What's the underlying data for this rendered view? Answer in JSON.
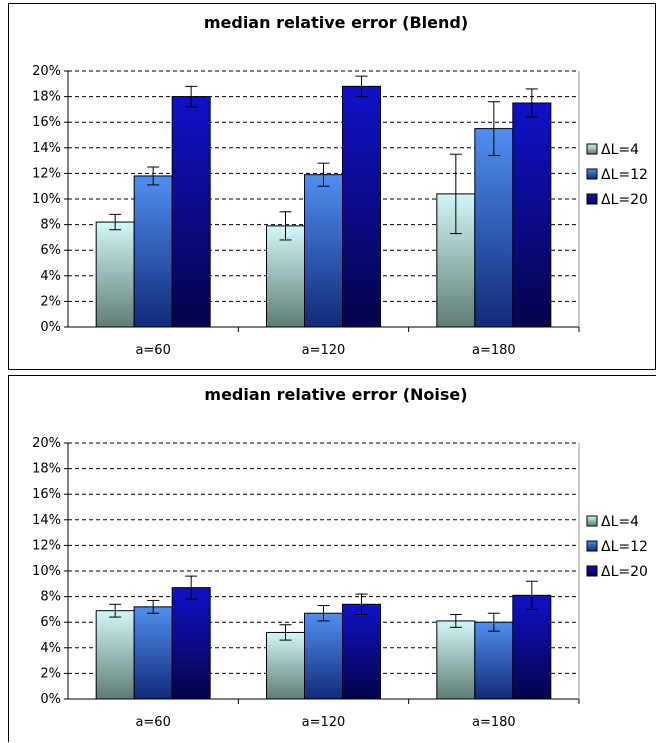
{
  "chart_data": [
    {
      "type": "bar",
      "title": "median relative error (Blend)",
      "categories": [
        "a=60",
        "a=120",
        "a=180"
      ],
      "ylim": [
        0,
        20
      ],
      "yticks": [
        "0%",
        "2%",
        "4%",
        "6%",
        "8%",
        "10%",
        "12%",
        "14%",
        "16%",
        "18%",
        "20%"
      ],
      "grid": true,
      "legend_position": "right",
      "series": [
        {
          "name": "ΔL=4",
          "values": [
            8.2,
            7.9,
            10.4
          ],
          "err": [
            0.6,
            1.1,
            3.1
          ]
        },
        {
          "name": "ΔL=12",
          "values": [
            11.8,
            11.9,
            15.5
          ],
          "err": [
            0.7,
            0.9,
            2.1
          ]
        },
        {
          "name": "ΔL=20",
          "values": [
            18.0,
            18.8,
            17.5
          ],
          "err": [
            0.8,
            0.8,
            1.1
          ]
        }
      ],
      "colors": {
        "s0_top": "#d2f7f7",
        "s0_bottom": "#5f7d75",
        "s1_top": "#4f8ff0",
        "s1_bottom": "#112a78",
        "s2_top": "#1111c8",
        "s2_bottom": "#04044a"
      }
    },
    {
      "type": "bar",
      "title": "median relative error (Noise)",
      "categories": [
        "a=60",
        "a=120",
        "a=180"
      ],
      "ylim": [
        0,
        20
      ],
      "yticks": [
        "0%",
        "2%",
        "4%",
        "6%",
        "8%",
        "10%",
        "12%",
        "14%",
        "16%",
        "18%",
        "20%"
      ],
      "grid": true,
      "legend_position": "right",
      "series": [
        {
          "name": "ΔL=4",
          "values": [
            6.9,
            5.2,
            6.1
          ],
          "err": [
            0.5,
            0.6,
            0.5
          ]
        },
        {
          "name": "ΔL=12",
          "values": [
            7.2,
            6.7,
            6.0
          ],
          "err": [
            0.5,
            0.6,
            0.7
          ]
        },
        {
          "name": "ΔL=20",
          "values": [
            8.7,
            7.4,
            8.1
          ],
          "err": [
            0.9,
            0.8,
            1.1
          ]
        }
      ],
      "colors": {
        "s0_top": "#d2f7f7",
        "s0_bottom": "#5f7d75",
        "s1_top": "#4f8ff0",
        "s1_bottom": "#112a78",
        "s2_top": "#1111c8",
        "s2_bottom": "#04044a"
      }
    }
  ]
}
